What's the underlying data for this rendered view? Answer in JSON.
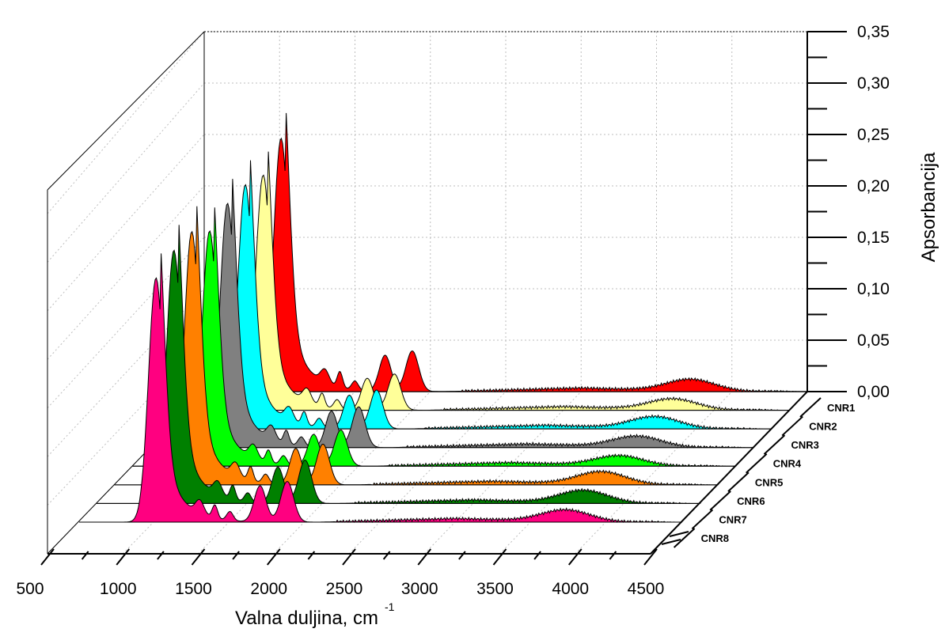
{
  "chart_data": {
    "type": "area",
    "title": "",
    "xlabel": "Valna duljina, cm",
    "xlabel_sup": "-1",
    "ylabel": "Apsorbancija",
    "xlim": [
      500,
      4500
    ],
    "ylim": [
      0,
      0.35
    ],
    "x_ticks": [
      "500",
      "1000",
      "1500",
      "2000",
      "2500",
      "3000",
      "3500",
      "4000",
      "4500"
    ],
    "y_ticks": [
      "0,00",
      "0,05",
      "0,10",
      "0,15",
      "0,20",
      "0,25",
      "0,30",
      "0,35"
    ],
    "grid": true,
    "series": [
      {
        "name": "CNR1",
        "color": "#ff0000",
        "peak_x": [
          1010,
          1140,
          1400,
          1700,
          1880,
          3730
        ],
        "peak_y": [
          0.28,
          0.055,
          0.018,
          0.04,
          0.045,
          0.013
        ]
      },
      {
        "name": "CNR2",
        "color": "#ffff99",
        "peak_x": [
          1010,
          1140,
          1400,
          1700,
          1880,
          3730
        ],
        "peak_y": [
          0.26,
          0.05,
          0.015,
          0.035,
          0.04,
          0.012
        ]
      },
      {
        "name": "CNR3",
        "color": "#00ffff",
        "peak_x": [
          1010,
          1140,
          1400,
          1700,
          1880,
          3730
        ],
        "peak_y": [
          0.27,
          0.05,
          0.015,
          0.037,
          0.043,
          0.013
        ]
      },
      {
        "name": "CNR4",
        "color": "#808080",
        "peak_x": [
          1010,
          1140,
          1400,
          1700,
          1880,
          3730
        ],
        "peak_y": [
          0.27,
          0.05,
          0.015,
          0.04,
          0.045,
          0.012
        ]
      },
      {
        "name": "CNR5",
        "color": "#00ff00",
        "peak_x": [
          1010,
          1140,
          1400,
          1700,
          1880,
          3730
        ],
        "peak_y": [
          0.26,
          0.05,
          0.014,
          0.035,
          0.04,
          0.011
        ]
      },
      {
        "name": "CNR6",
        "color": "#ff8000",
        "peak_x": [
          1010,
          1140,
          1400,
          1700,
          1880,
          3730
        ],
        "peak_y": [
          0.28,
          0.055,
          0.016,
          0.04,
          0.045,
          0.014
        ]
      },
      {
        "name": "CNR7",
        "color": "#008000",
        "peak_x": [
          1010,
          1140,
          1400,
          1700,
          1880,
          3730
        ],
        "peak_y": [
          0.28,
          0.05,
          0.016,
          0.04,
          0.048,
          0.014
        ]
      },
      {
        "name": "CNR8",
        "color": "#ff0080",
        "peak_x": [
          1010,
          1140,
          1400,
          1700,
          1880,
          3730
        ],
        "peak_y": [
          0.27,
          0.055,
          0.015,
          0.04,
          0.045,
          0.013
        ]
      }
    ]
  }
}
